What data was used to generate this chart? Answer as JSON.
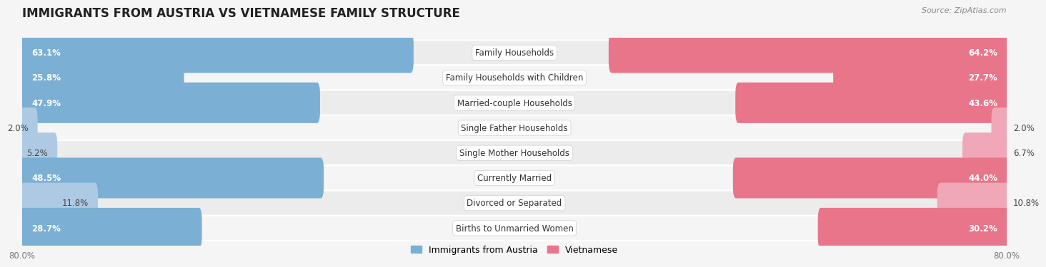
{
  "title": "IMMIGRANTS FROM AUSTRIA VS VIETNAMESE FAMILY STRUCTURE",
  "source": "Source: ZipAtlas.com",
  "categories": [
    "Family Households",
    "Family Households with Children",
    "Married-couple Households",
    "Single Father Households",
    "Single Mother Households",
    "Currently Married",
    "Divorced or Separated",
    "Births to Unmarried Women"
  ],
  "austria_values": [
    63.1,
    25.8,
    47.9,
    2.0,
    5.2,
    48.5,
    11.8,
    28.7
  ],
  "vietnamese_values": [
    64.2,
    27.7,
    43.6,
    2.0,
    6.7,
    44.0,
    10.8,
    30.2
  ],
  "austria_color": "#7bafd4",
  "austria_color_light": "#aec9e4",
  "vietnamese_color": "#e8758a",
  "vietnamese_color_light": "#f0a8b8",
  "axis_max": 80.0,
  "bar_height": 0.62,
  "row_bg_colors": [
    "#ececec",
    "#f5f5f5"
  ],
  "label_fontsize": 8.5,
  "title_fontsize": 12,
  "value_label_white_threshold": 15.0,
  "legend_labels": [
    "Immigrants from Austria",
    "Vietnamese"
  ]
}
